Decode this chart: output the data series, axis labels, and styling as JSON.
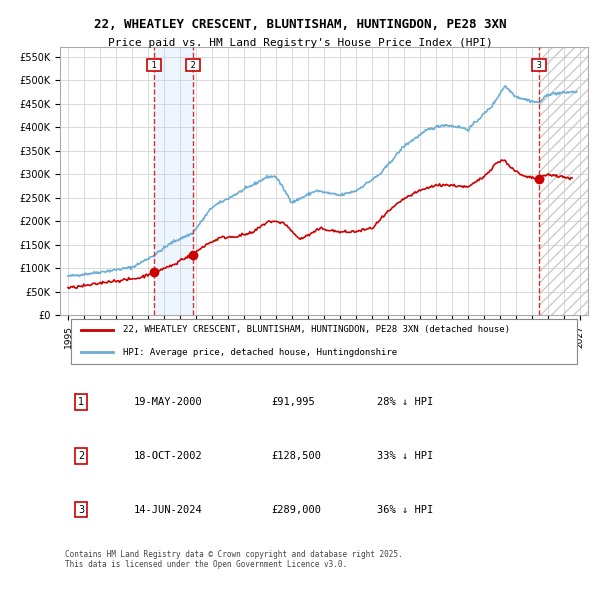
{
  "title_line1": "22, WHEATLEY CRESCENT, BLUNTISHAM, HUNTINGDON, PE28 3XN",
  "title_line2": "Price paid vs. HM Land Registry's House Price Index (HPI)",
  "sales": [
    {
      "num": 1,
      "date_label": "19-MAY-2000",
      "date_year": 2000.38,
      "price": 91995,
      "pct": "28% ↓ HPI"
    },
    {
      "num": 2,
      "date_label": "18-OCT-2002",
      "date_year": 2002.8,
      "price": 128500,
      "pct": "33% ↓ HPI"
    },
    {
      "num": 3,
      "date_label": "14-JUN-2024",
      "date_year": 2024.45,
      "price": 289000,
      "pct": "36% ↓ HPI"
    }
  ],
  "legend_line1": "22, WHEATLEY CRESCENT, BLUNTISHAM, HUNTINGDON, PE28 3XN (detached house)",
  "legend_line2": "HPI: Average price, detached house, Huntingdonshire",
  "footer": "Contains HM Land Registry data © Crown copyright and database right 2025.\nThis data is licensed under the Open Government Licence v3.0.",
  "xlim": [
    1994.5,
    2027.5
  ],
  "ylim": [
    0,
    570000
  ],
  "hpi_color": "#6baed6",
  "price_color": "#cc0000",
  "marker_color": "#cc0000",
  "vline_color": "#cc3333",
  "shade_color": "#ddeeff",
  "grid_color": "#cccccc",
  "background_color": "#ffffff",
  "box_color": "#cc0000",
  "hatch_color": "#cccccc"
}
